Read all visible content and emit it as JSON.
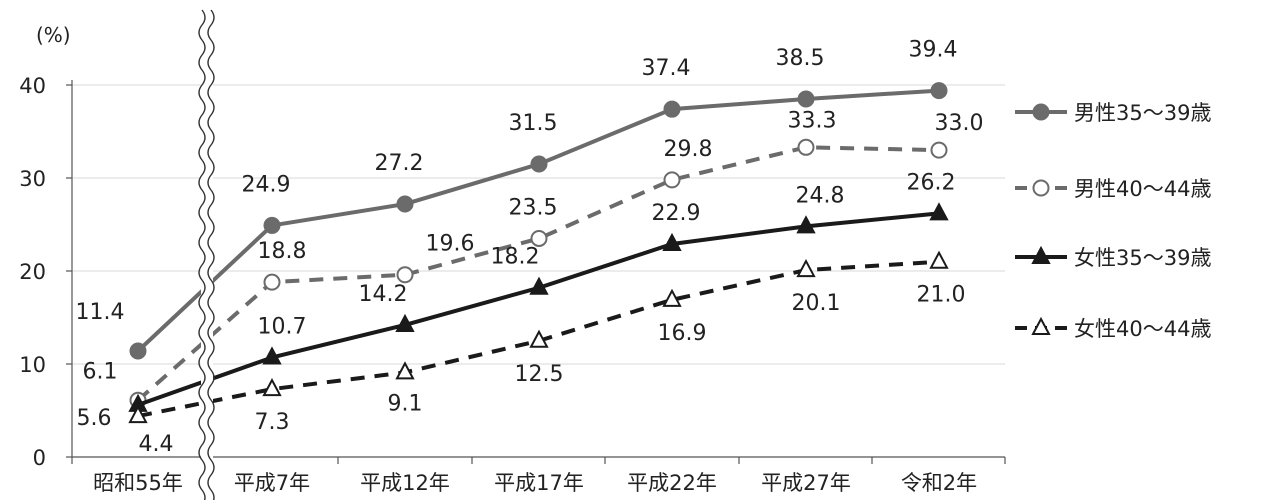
{
  "chart_data": {
    "type": "line",
    "ylabel": "(%)",
    "ylim": [
      0,
      40
    ],
    "yticks": [
      0,
      10,
      20,
      30,
      40
    ],
    "categories": [
      "昭和55年",
      "平成7年",
      "平成12年",
      "平成17年",
      "平成22年",
      "平成27年",
      "令和2年"
    ],
    "axis_break": "between 昭和55年 and 平成7年",
    "grid": "horizontal",
    "legend_position": "right",
    "series": [
      {
        "name": "男性35～39歳",
        "values": [
          11.4,
          24.9,
          27.2,
          31.5,
          37.4,
          38.5,
          39.4
        ],
        "labels": [
          "11.4",
          "24.9",
          "27.2",
          "31.5",
          "37.4",
          "38.5",
          "39.4"
        ],
        "color": "#6b6b6b",
        "line": "solid",
        "marker": "circle-filled"
      },
      {
        "name": "男性40～44歳",
        "values": [
          6.1,
          18.8,
          19.6,
          23.5,
          29.8,
          33.3,
          33.0
        ],
        "labels": [
          "6.1",
          "18.8",
          "19.6",
          "23.5",
          "29.8",
          "33.3",
          "33.0"
        ],
        "color": "#6b6b6b",
        "line": "dashed",
        "marker": "circle-open"
      },
      {
        "name": "女性35～39歳",
        "values": [
          5.6,
          10.7,
          14.2,
          18.2,
          22.9,
          24.8,
          26.2
        ],
        "labels": [
          "5.6",
          "10.7",
          "14.2",
          "18.2",
          "22.9",
          "24.8",
          "26.2"
        ],
        "color": "#1a1a1a",
        "line": "solid",
        "marker": "triangle-filled"
      },
      {
        "name": "女性40～44歳",
        "values": [
          4.4,
          7.3,
          9.1,
          12.5,
          16.9,
          20.1,
          21.0
        ],
        "labels": [
          "4.4",
          "7.3",
          "9.1",
          "12.5",
          "16.9",
          "20.1",
          "21.0"
        ],
        "color": "#1a1a1a",
        "line": "dashed",
        "marker": "triangle-open"
      }
    ]
  }
}
